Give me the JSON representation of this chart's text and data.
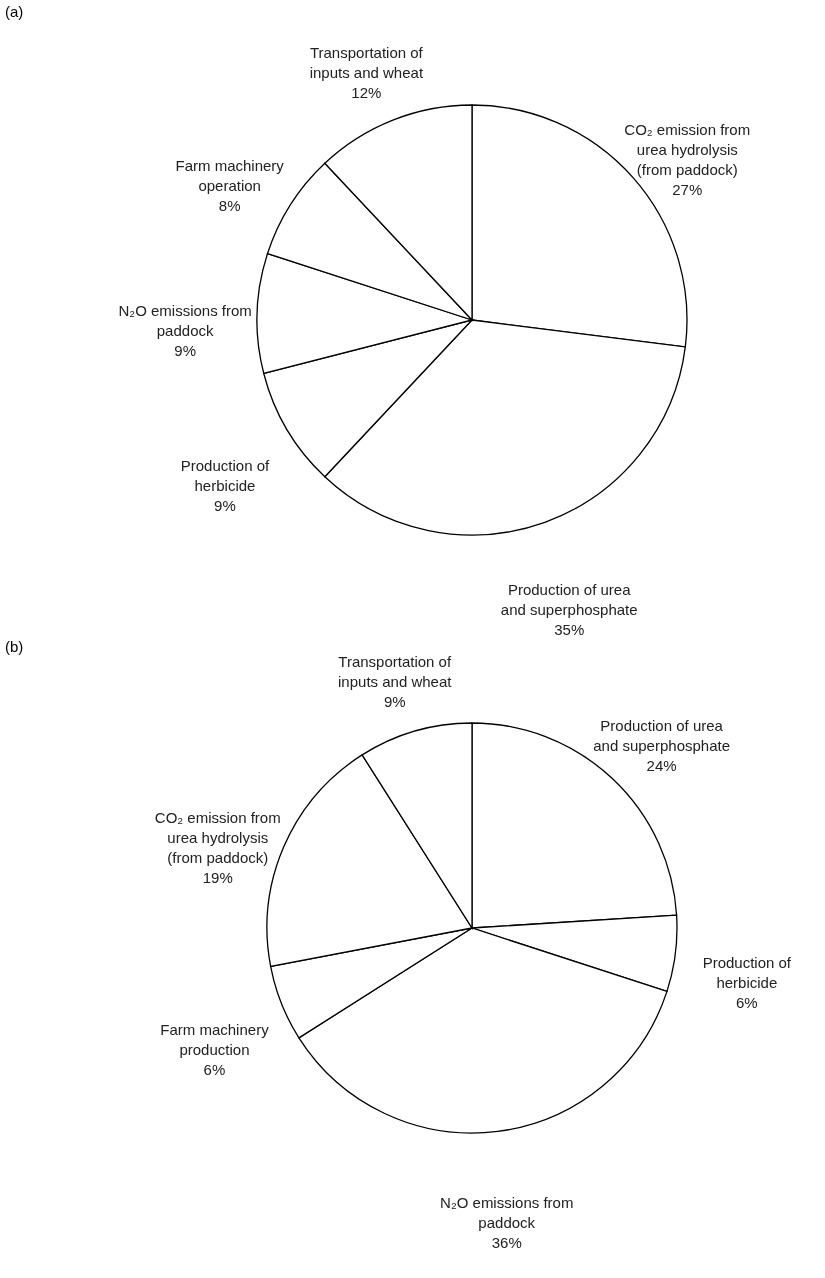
{
  "chart_data": [
    {
      "type": "pie",
      "title": "(a)",
      "categories": [
        "CO₂ emission from\nurea hydrolysis\n(from paddock)",
        "Production of urea\nand superphosphate",
        "Production of\nherbicide",
        "N₂O emissions from\npaddock",
        "Farm machinery\noperation",
        "Transportation of\ninputs and wheat"
      ],
      "values": [
        27,
        35,
        9,
        9,
        8,
        12
      ],
      "value_labels": [
        "27%",
        "35%",
        "9%",
        "9%",
        "8%",
        "12%"
      ],
      "colors": [
        "#ffffff",
        "#ffffff",
        "#ffffff",
        "#ffffff",
        "#ffffff",
        "#ffffff"
      ]
    },
    {
      "type": "pie",
      "title": "(b)",
      "categories": [
        "Production of urea\nand superphosphate",
        "Production of\nherbicide",
        "N₂O emissions from\npaddock",
        "Farm machinery\nproduction",
        "CO₂ emission from\nurea hydrolysis\n(from paddock)",
        "Transportation of\ninputs and wheat"
      ],
      "values": [
        24,
        6,
        36,
        6,
        19,
        9
      ],
      "value_labels": [
        "24%",
        "6%",
        "36%",
        "6%",
        "19%",
        "9%"
      ],
      "colors": [
        "#ffffff",
        "#ffffff",
        "#ffffff",
        "#ffffff",
        "#ffffff",
        "#ffffff"
      ]
    }
  ]
}
